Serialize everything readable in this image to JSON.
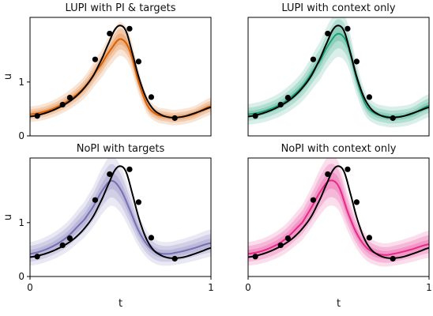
{
  "chart_data": [
    {
      "type": "line",
      "title": "LUPI with PI & targets",
      "xlabel": "",
      "ylabel": "u",
      "xlim": [
        0,
        1
      ],
      "ylim": [
        0,
        2.2
      ],
      "xticks": [],
      "yticks": [
        "0",
        "1"
      ],
      "color": "#d95f02",
      "truth_t": [
        0.0,
        0.05,
        0.1,
        0.15,
        0.2,
        0.25,
        0.3,
        0.35,
        0.4,
        0.44,
        0.47,
        0.5,
        0.53,
        0.56,
        0.6,
        0.64,
        0.68,
        0.72,
        0.76,
        0.8,
        0.85,
        0.9,
        0.95,
        1.0
      ],
      "truth_u": [
        0.36,
        0.39,
        0.44,
        0.51,
        0.6,
        0.72,
        0.89,
        1.12,
        1.45,
        1.76,
        1.98,
        2.05,
        1.95,
        1.6,
        1.1,
        0.72,
        0.5,
        0.4,
        0.35,
        0.34,
        0.36,
        0.41,
        0.47,
        0.53
      ],
      "points_t": [
        0.04,
        0.18,
        0.22,
        0.36,
        0.44,
        0.55,
        0.6,
        0.67,
        0.8
      ],
      "points_u": [
        0.37,
        0.58,
        0.71,
        1.42,
        1.9,
        1.99,
        1.38,
        0.72,
        0.33
      ],
      "mean_t": [
        0.0,
        0.1,
        0.2,
        0.3,
        0.4,
        0.45,
        0.5,
        0.55,
        0.6,
        0.65,
        0.7,
        0.75,
        0.8,
        0.9,
        1.0
      ],
      "mean_u": [
        0.4,
        0.47,
        0.63,
        0.9,
        1.35,
        1.62,
        1.8,
        1.6,
        1.0,
        0.56,
        0.4,
        0.36,
        0.34,
        0.4,
        0.55
      ],
      "band_widths": [
        0.08,
        0.15,
        0.24
      ]
    },
    {
      "type": "line",
      "title": "LUPI with context only",
      "xlabel": "",
      "ylabel": "",
      "xlim": [
        0,
        1
      ],
      "ylim": [
        0,
        2.2
      ],
      "xticks": [],
      "yticks": [],
      "color": "#1b9e77",
      "truth_t": [
        0.0,
        0.05,
        0.1,
        0.15,
        0.2,
        0.25,
        0.3,
        0.35,
        0.4,
        0.44,
        0.47,
        0.5,
        0.53,
        0.56,
        0.6,
        0.64,
        0.68,
        0.72,
        0.76,
        0.8,
        0.85,
        0.9,
        0.95,
        1.0
      ],
      "truth_u": [
        0.36,
        0.39,
        0.44,
        0.51,
        0.6,
        0.72,
        0.89,
        1.12,
        1.45,
        1.76,
        1.98,
        2.05,
        1.95,
        1.6,
        1.1,
        0.72,
        0.5,
        0.4,
        0.35,
        0.34,
        0.36,
        0.41,
        0.47,
        0.53
      ],
      "points_t": [
        0.04,
        0.18,
        0.22,
        0.36,
        0.44,
        0.55,
        0.6,
        0.67,
        0.8
      ],
      "points_u": [
        0.37,
        0.58,
        0.71,
        1.42,
        1.9,
        1.99,
        1.38,
        0.72,
        0.33
      ],
      "mean_t": [
        0.0,
        0.1,
        0.2,
        0.3,
        0.4,
        0.45,
        0.5,
        0.55,
        0.6,
        0.65,
        0.7,
        0.75,
        0.8,
        0.9,
        1.0
      ],
      "mean_u": [
        0.4,
        0.47,
        0.63,
        0.92,
        1.4,
        1.72,
        1.9,
        1.7,
        1.05,
        0.58,
        0.42,
        0.37,
        0.35,
        0.4,
        0.56
      ],
      "band_widths": [
        0.1,
        0.2,
        0.32
      ]
    },
    {
      "type": "line",
      "title": "NoPI with targets",
      "xlabel": "t",
      "ylabel": "u",
      "xlim": [
        0,
        1
      ],
      "ylim": [
        0,
        2.2
      ],
      "xticks": [
        "0",
        "1"
      ],
      "yticks": [
        "0",
        "1"
      ],
      "color": "#7570b3",
      "truth_t": [
        0.0,
        0.05,
        0.1,
        0.15,
        0.2,
        0.25,
        0.3,
        0.35,
        0.4,
        0.44,
        0.47,
        0.5,
        0.53,
        0.56,
        0.6,
        0.64,
        0.68,
        0.72,
        0.76,
        0.8,
        0.85,
        0.9,
        0.95,
        1.0
      ],
      "truth_u": [
        0.36,
        0.39,
        0.44,
        0.51,
        0.6,
        0.72,
        0.89,
        1.12,
        1.45,
        1.76,
        1.98,
        2.05,
        1.95,
        1.6,
        1.1,
        0.72,
        0.5,
        0.4,
        0.35,
        0.34,
        0.36,
        0.41,
        0.47,
        0.53
      ],
      "points_t": [
        0.04,
        0.18,
        0.22,
        0.36,
        0.44,
        0.55,
        0.6,
        0.67,
        0.8
      ],
      "points_u": [
        0.37,
        0.58,
        0.71,
        1.42,
        1.9,
        1.99,
        1.38,
        0.72,
        0.33
      ],
      "mean_t": [
        0.0,
        0.1,
        0.2,
        0.3,
        0.35,
        0.4,
        0.45,
        0.5,
        0.55,
        0.6,
        0.65,
        0.7,
        0.75,
        0.8,
        0.9,
        1.0
      ],
      "mean_u": [
        0.42,
        0.52,
        0.72,
        1.05,
        1.3,
        1.6,
        1.78,
        1.62,
        1.25,
        0.85,
        0.58,
        0.45,
        0.42,
        0.44,
        0.52,
        0.62
      ],
      "band_widths": [
        0.12,
        0.24,
        0.36
      ]
    },
    {
      "type": "line",
      "title": "NoPI with context only",
      "xlabel": "t",
      "ylabel": "",
      "xlim": [
        0,
        1
      ],
      "ylim": [
        0,
        2.2
      ],
      "xticks": [
        "0",
        "1"
      ],
      "yticks": [],
      "color": "#e7298a",
      "truth_t": [
        0.0,
        0.05,
        0.1,
        0.15,
        0.2,
        0.25,
        0.3,
        0.35,
        0.4,
        0.44,
        0.47,
        0.5,
        0.53,
        0.56,
        0.6,
        0.64,
        0.68,
        0.72,
        0.76,
        0.8,
        0.85,
        0.9,
        0.95,
        1.0
      ],
      "truth_u": [
        0.36,
        0.39,
        0.44,
        0.51,
        0.6,
        0.72,
        0.89,
        1.12,
        1.45,
        1.76,
        1.98,
        2.05,
        1.95,
        1.6,
        1.1,
        0.72,
        0.5,
        0.4,
        0.35,
        0.34,
        0.36,
        0.41,
        0.47,
        0.53
      ],
      "points_t": [
        0.04,
        0.18,
        0.22,
        0.36,
        0.44,
        0.55,
        0.6,
        0.67,
        0.8
      ],
      "points_u": [
        0.37,
        0.58,
        0.71,
        1.42,
        1.9,
        1.99,
        1.38,
        0.72,
        0.33
      ],
      "mean_t": [
        0.0,
        0.1,
        0.2,
        0.3,
        0.35,
        0.4,
        0.45,
        0.5,
        0.55,
        0.6,
        0.65,
        0.7,
        0.75,
        0.8,
        0.9,
        1.0
      ],
      "mean_u": [
        0.42,
        0.5,
        0.68,
        1.0,
        1.28,
        1.58,
        1.78,
        1.68,
        1.2,
        0.8,
        0.55,
        0.44,
        0.4,
        0.42,
        0.5,
        0.6
      ],
      "band_widths": [
        0.12,
        0.24,
        0.36
      ]
    }
  ]
}
